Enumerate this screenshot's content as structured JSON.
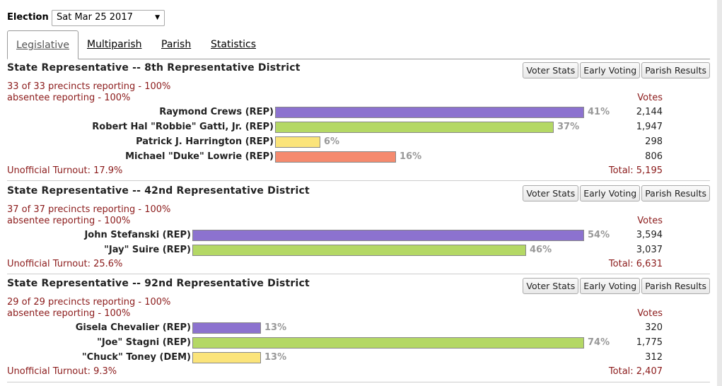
{
  "election": {
    "label": "Election",
    "selected": "Sat Mar 25 2017"
  },
  "tabs": [
    {
      "label": "Legislative",
      "active": true
    },
    {
      "label": "Multiparish",
      "active": false
    },
    {
      "label": "Parish",
      "active": false
    },
    {
      "label": "Statistics",
      "active": false
    }
  ],
  "buttons": {
    "voter_stats": "Voter Stats",
    "early_voting": "Early Voting",
    "parish_results": "Parish Results"
  },
  "votes_header": "Votes",
  "colors": {
    "purple": "#8c72cf",
    "green": "#b4d865",
    "yellow": "#fbe47a",
    "salmon": "#f58a6e",
    "dark_red": "#8b1a1a"
  },
  "races": [
    {
      "title": "State Representative -- 8th Representative District",
      "precincts": "33 of 33 precincts reporting - 100%",
      "absentee": "absentee reporting - 100%",
      "candidates": [
        {
          "name": "Raymond Crews (REP)",
          "pct_label": "41%",
          "votes": "2,144",
          "share": 41,
          "color": "#8c72cf"
        },
        {
          "name": "Robert Hal \"Robbie\" Gatti, Jr. (REP)",
          "pct_label": "37%",
          "votes": "1,947",
          "share": 37,
          "color": "#b4d865"
        },
        {
          "name": "Patrick J. Harrington (REP)",
          "pct_label": "6%",
          "votes": "298",
          "share": 6,
          "color": "#fbe47a"
        },
        {
          "name": "Michael \"Duke\" Lowrie (REP)",
          "pct_label": "16%",
          "votes": "806",
          "share": 16,
          "color": "#f58a6e"
        }
      ],
      "turnout": "Unofficial Turnout: 17.9%",
      "total": "Total: 5,195"
    },
    {
      "title": "State Representative -- 42nd Representative District",
      "precincts": "37 of 37 precincts reporting - 100%",
      "absentee": "absentee reporting - 100%",
      "candidates": [
        {
          "name": "John Stefanski (REP)",
          "pct_label": "54%",
          "votes": "3,594",
          "share": 54,
          "color": "#8c72cf"
        },
        {
          "name": "\"Jay\" Suire (REP)",
          "pct_label": "46%",
          "votes": "3,037",
          "share": 46,
          "color": "#b4d865"
        }
      ],
      "turnout": "Unofficial Turnout: 25.6%",
      "total": "Total: 6,631"
    },
    {
      "title": "State Representative -- 92nd Representative District",
      "precincts": "29 of 29 precincts reporting - 100%",
      "absentee": "absentee reporting - 100%",
      "candidates": [
        {
          "name": "Gisela Chevalier (REP)",
          "pct_label": "13%",
          "votes": "320",
          "share": 13,
          "color": "#8c72cf"
        },
        {
          "name": "\"Joe\" Stagni (REP)",
          "pct_label": "74%",
          "votes": "1,775",
          "share": 74,
          "color": "#b4d865"
        },
        {
          "name": "\"Chuck\" Toney (DEM)",
          "pct_label": "13%",
          "votes": "312",
          "share": 13,
          "color": "#fbe47a"
        }
      ],
      "turnout": "Unofficial Turnout: 9.3%",
      "total": "Total: 2,407"
    }
  ]
}
